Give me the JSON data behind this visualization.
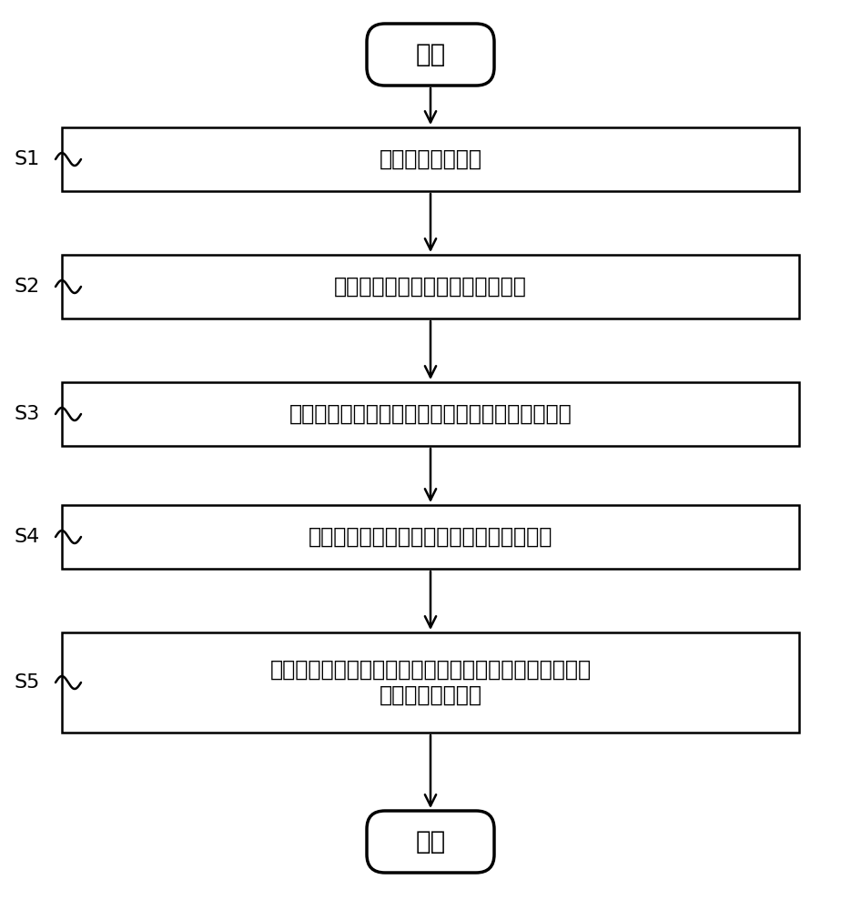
{
  "bg_color": "#ffffff",
  "box_color": "#ffffff",
  "box_edge_color": "#000000",
  "text_color": "#000000",
  "start_label": "开始",
  "end_label": "结束",
  "steps": [
    {
      "id": "S1",
      "text": "采集染色体图像；"
    },
    {
      "id": "S2",
      "text": "对采集的染色体图像进行预处理；"
    },
    {
      "id": "S3",
      "text": "根据预处理得到的染色体图像对染色体进行分割；"
    },
    {
      "id": "S4",
      "text": "对分割完成的染色体进行特征参数的提取；"
    },
    {
      "id": "S5",
      "text": "根据特征参数的提取结果，对染色体进行分类，完成染色\n体核型自动分析；"
    }
  ],
  "font_size_step": 17,
  "font_size_label": 16,
  "font_size_terminal": 20,
  "fig_w": 9.46,
  "fig_h": 10.0,
  "dpi": 100
}
